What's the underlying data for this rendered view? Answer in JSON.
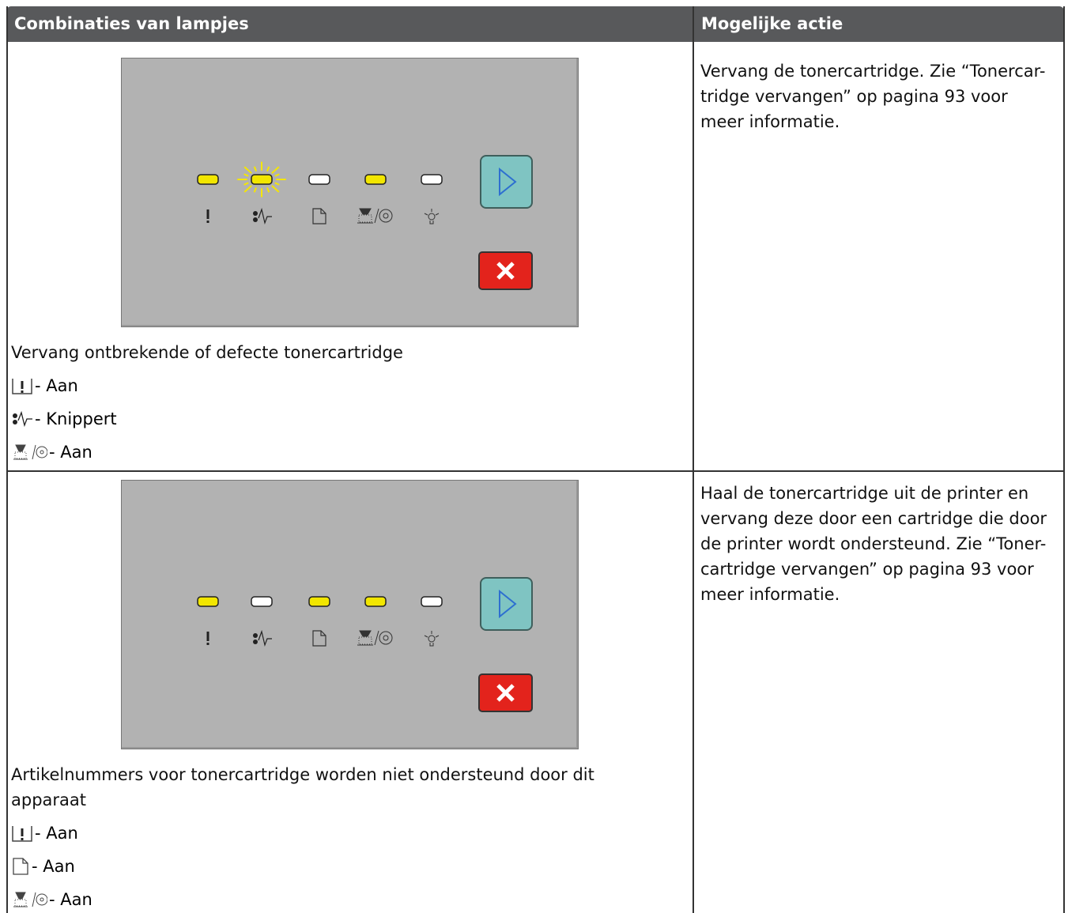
{
  "table": {
    "headers": [
      "Combinaties van lampjes",
      "Mogelijke actie"
    ],
    "rows": [
      {
        "description": [
          "Vervang ontbrekende of defecte tonercartridge"
        ],
        "lights": [
          "- Aan",
          "- Knippert",
          "- Aan"
        ],
        "action": [
          "Vervang de tonercartridge. Zie “Tonercar-",
          "tridge vervangen” op pagina 93 voor",
          "meer informatie."
        ]
      },
      {
        "description": [
          "Artikelnummers voor tonercartridge worden niet ondersteund door dit",
          "apparaat"
        ],
        "lights": [
          "- Aan",
          "- Aan",
          "- Aan"
        ],
        "action": [
          "Haal de tonercartridge uit de printer en",
          "vervang deze door een cartridge die door",
          "de printer wordt ondersteund. Zie “Toner-",
          "cartridge vervangen” op pagina 93 voor",
          "meer informatie."
        ]
      }
    ]
  }
}
